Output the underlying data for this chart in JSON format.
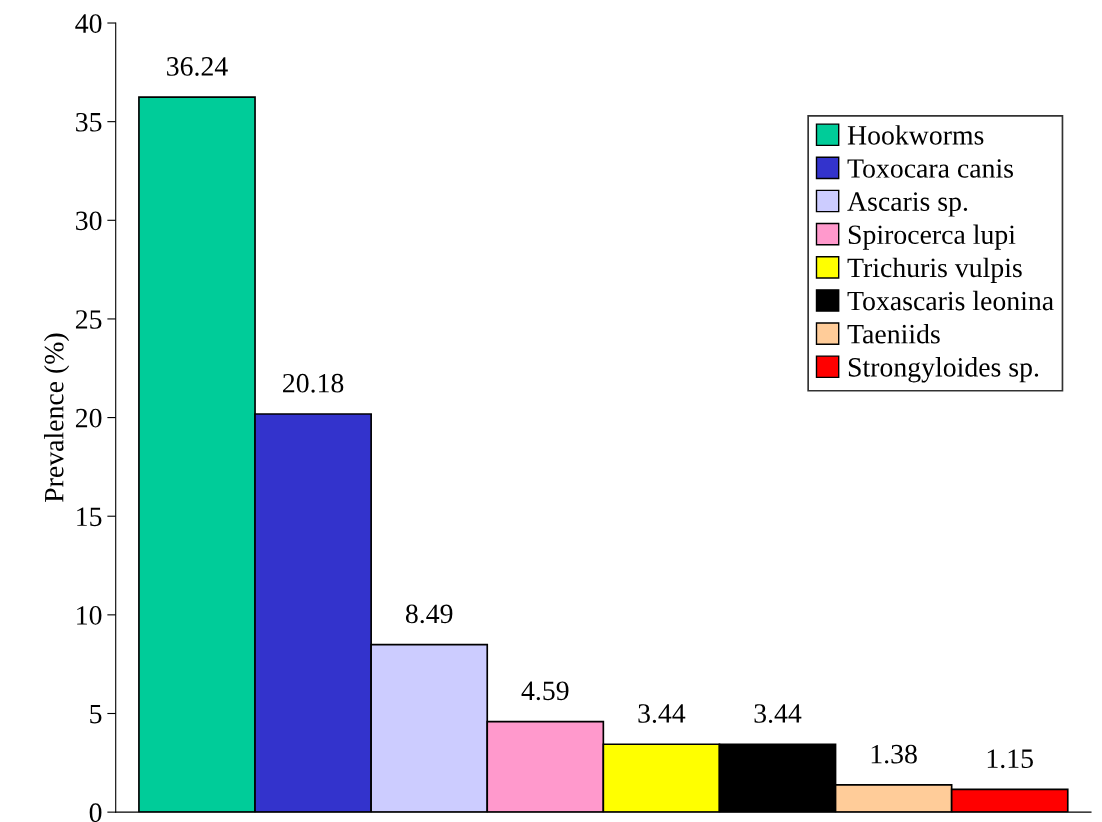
{
  "chart_data": {
    "type": "bar",
    "ylabel": "Prevalence (%)",
    "categories": [
      null,
      null,
      null,
      null,
      null,
      null,
      null,
      null
    ],
    "series": [
      {
        "name": "Hookworms",
        "color": "#00cc99",
        "values": [
          36.24,
          null,
          null,
          null,
          null,
          null,
          null,
          null
        ]
      },
      {
        "name": "Toxocara canis",
        "color": "#3333cc",
        "values": [
          null,
          20.18,
          null,
          null,
          null,
          null,
          null,
          null
        ]
      },
      {
        "name": "Ascaris sp.",
        "color": "#ccccff",
        "values": [
          null,
          null,
          8.49,
          null,
          null,
          null,
          null,
          null
        ]
      },
      {
        "name": "Spirocerca lupi",
        "color": "#ff99cc",
        "values": [
          null,
          null,
          null,
          4.59,
          null,
          null,
          null,
          null
        ]
      },
      {
        "name": "Trichuris vulpis",
        "color": "#ffff00",
        "values": [
          null,
          null,
          null,
          null,
          3.44,
          null,
          null,
          null
        ]
      },
      {
        "name": "Toxascaris leonina",
        "color": "#000000",
        "values": [
          null,
          null,
          null,
          null,
          null,
          3.44,
          null,
          null
        ]
      },
      {
        "name": "Taeniids",
        "color": "#ffcc99",
        "values": [
          null,
          null,
          null,
          null,
          null,
          null,
          1.38,
          null
        ]
      },
      {
        "name": "Strongyloides sp.",
        "color": "#ff0000",
        "values": [
          null,
          null,
          null,
          null,
          null,
          null,
          null,
          1.15
        ]
      }
    ],
    "ylim": [
      0,
      40
    ],
    "yticks": [
      0,
      5,
      10,
      15,
      20,
      25,
      30,
      35,
      40
    ],
    "data_labels": true,
    "legend": "top right",
    "grid": false
  }
}
